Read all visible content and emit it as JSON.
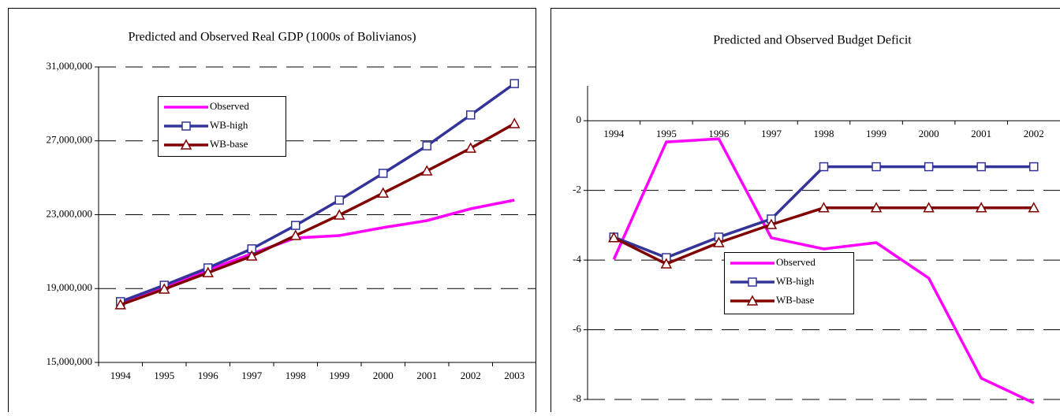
{
  "chart_data": [
    {
      "type": "line",
      "title": "Predicted and Observed Real GDP (1000s of Bolivianos)",
      "categories": [
        "1994",
        "1995",
        "1996",
        "1997",
        "1998",
        "1999",
        "2000",
        "2001",
        "2002",
        "2003"
      ],
      "series": [
        {
          "name": "Observed",
          "color": "#ff00ff",
          "marker": null,
          "values": [
            18200000,
            19060000,
            20000000,
            20890000,
            21740000,
            21870000,
            22300000,
            22680000,
            23320000,
            23790000
          ]
        },
        {
          "name": "WB-high",
          "color": "#333399",
          "marker": "square",
          "values": [
            18290000,
            19180000,
            20120000,
            21150000,
            22420000,
            23790000,
            25240000,
            26730000,
            28400000,
            30100000
          ]
        },
        {
          "name": "WB-base",
          "color": "#800000",
          "marker": "triangle",
          "values": [
            18120000,
            18970000,
            19860000,
            20760000,
            21870000,
            22980000,
            24170000,
            25370000,
            26600000,
            27930000
          ]
        }
      ],
      "ylim": [
        15000000,
        31000000
      ],
      "yticks": [
        {
          "value": 15000000,
          "label": "15,000,000"
        },
        {
          "value": 19000000,
          "label": "19,000,000"
        },
        {
          "value": 23000000,
          "label": "23,000,000"
        },
        {
          "value": 27000000,
          "label": "27,000,000"
        },
        {
          "value": 31000000,
          "label": "31,000,000"
        }
      ],
      "grid": true
    },
    {
      "type": "line",
      "title": "Predicted and Observed Budget Deficit",
      "categories": [
        "1994",
        "1995",
        "1996",
        "1997",
        "1998",
        "1999",
        "2000",
        "2001",
        "2002"
      ],
      "series": [
        {
          "name": "Observed",
          "color": "#ff00ff",
          "marker": null,
          "values": [
            -3.98,
            -0.61,
            -0.52,
            -3.36,
            -3.68,
            -3.5,
            -4.52,
            -7.39,
            -8.1
          ]
        },
        {
          "name": "WB-high",
          "color": "#333399",
          "marker": "square",
          "values": [
            -3.34,
            -3.93,
            -3.34,
            -2.82,
            -1.32,
            -1.32,
            -1.32,
            -1.32,
            -1.32
          ]
        },
        {
          "name": "WB-base",
          "color": "#800000",
          "marker": "triangle",
          "values": [
            -3.36,
            -4.11,
            -3.5,
            -2.98,
            -2.5,
            -2.5,
            -2.5,
            -2.5,
            -2.5
          ]
        }
      ],
      "ylim": [
        -8,
        1
      ],
      "yticks": [
        -8,
        -6,
        -4,
        -2,
        0
      ],
      "grid": true
    }
  ]
}
